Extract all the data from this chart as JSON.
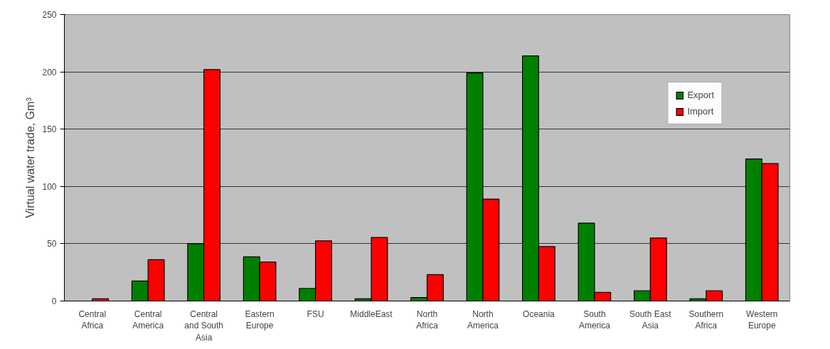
{
  "chart_data": {
    "type": "bar",
    "ylabel": "Virtual water trade, Gm³",
    "categories": [
      "Central Africa",
      "Central America",
      "Central and South Asia",
      "Eastern Europe",
      "FSU",
      "MiddleEast",
      "North Africa",
      "North America",
      "Oceania",
      "South America",
      "South East Asia",
      "Southern Africa",
      "Western Europe"
    ],
    "series": [
      {
        "name": "Export",
        "color": "#008000",
        "values": [
          null,
          17.5,
          50,
          38.5,
          11,
          2,
          3,
          199,
          214,
          68,
          9,
          2,
          124
        ]
      },
      {
        "name": "Import",
        "color": "#ff0000",
        "values": [
          2,
          36,
          202,
          34,
          52.5,
          55.5,
          23,
          89,
          47.5,
          7.5,
          55,
          9,
          120
        ]
      }
    ],
    "ylim": [
      0,
      250
    ],
    "yticks": [
      0,
      50,
      100,
      150,
      200,
      250
    ],
    "grid": "y",
    "legend": "top right"
  }
}
